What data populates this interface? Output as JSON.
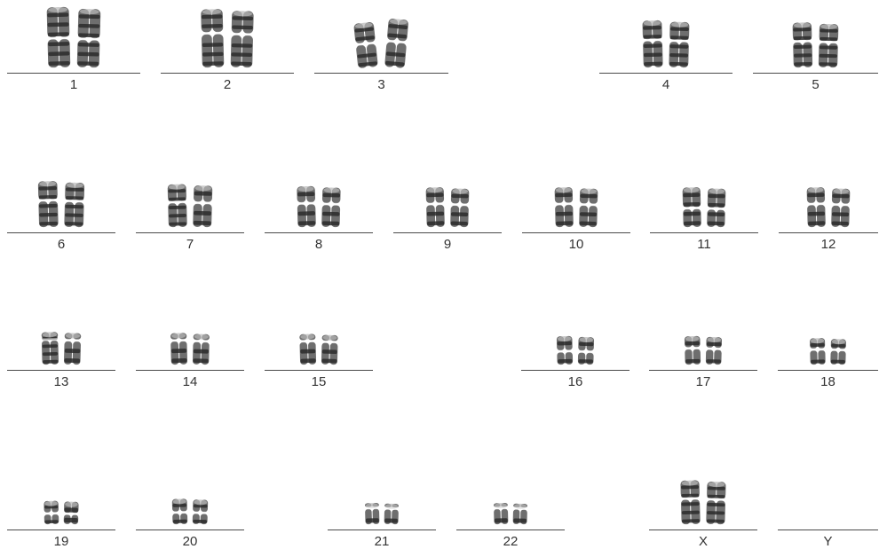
{
  "karyotype": {
    "colors": {
      "chromatin_dark": "#2b2b2b",
      "chromatin_mid": "#6e6e6e",
      "chromatin_light": "#b8b8b8",
      "baseline": "#4a4a4a",
      "label": "#333333"
    },
    "pairs": [
      {
        "id": "1",
        "label": "1",
        "size": 1.0,
        "shape": "metacentric"
      },
      {
        "id": "2",
        "label": "2",
        "size": 0.96,
        "shape": "submetacentric"
      },
      {
        "id": "3",
        "label": "3",
        "size": 0.8,
        "shape": "bent"
      },
      {
        "id": "4",
        "label": "4",
        "size": 0.74,
        "shape": "submetacentric"
      },
      {
        "id": "5",
        "label": "5",
        "size": 0.7,
        "shape": "submetacentric"
      },
      {
        "id": "6",
        "label": "6",
        "size": 0.72,
        "shape": "submetacentric"
      },
      {
        "id": "7",
        "label": "7",
        "size": 0.66,
        "shape": "submetacentric"
      },
      {
        "id": "8",
        "label": "8",
        "size": 0.62,
        "shape": "submetacentric"
      },
      {
        "id": "9",
        "label": "9",
        "size": 0.6,
        "shape": "submetacentric"
      },
      {
        "id": "10",
        "label": "10",
        "size": 0.6,
        "shape": "submetacentric"
      },
      {
        "id": "11",
        "label": "11",
        "size": 0.6,
        "shape": "metacentric"
      },
      {
        "id": "12",
        "label": "12",
        "size": 0.6,
        "shape": "submetacentric"
      },
      {
        "id": "13",
        "label": "13",
        "size": 0.46,
        "shape": "acrocentric"
      },
      {
        "id": "14",
        "label": "14",
        "size": 0.44,
        "shape": "acrocentric"
      },
      {
        "id": "15",
        "label": "15",
        "size": 0.42,
        "shape": "acrocentric"
      },
      {
        "id": "16",
        "label": "16",
        "size": 0.38,
        "shape": "metacentric"
      },
      {
        "id": "17",
        "label": "17",
        "size": 0.38,
        "shape": "submetacentric"
      },
      {
        "id": "18",
        "label": "18",
        "size": 0.34,
        "shape": "submetacentric"
      },
      {
        "id": "19",
        "label": "19",
        "size": 0.28,
        "shape": "metacentric"
      },
      {
        "id": "20",
        "label": "20",
        "size": 0.32,
        "shape": "metacentric"
      },
      {
        "id": "21",
        "label": "21",
        "size": 0.24,
        "shape": "acrocentric"
      },
      {
        "id": "22",
        "label": "22",
        "size": 0.24,
        "shape": "acrocentric"
      },
      {
        "id": "X",
        "label": "X",
        "size": 0.68,
        "shape": "submetacentric"
      },
      {
        "id": "Y",
        "label": "Y",
        "size": 0.0,
        "shape": "absent"
      }
    ]
  }
}
